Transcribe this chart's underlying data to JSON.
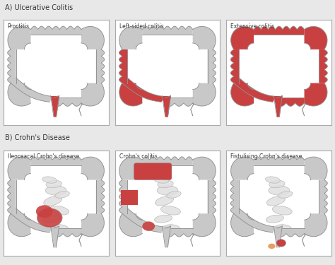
{
  "title_a": "A) Ulcerative Colitis",
  "title_b": "B) Crohn's Disease",
  "panels_row1": [
    "Proctitis",
    "Left-sided colitis",
    "Extensive colitis"
  ],
  "panels_row2": [
    "Ileoceacal Crohn's disease",
    "Crohn's colitis",
    "Fistulising Crohn's disease"
  ],
  "bg_color": "#e8e8e8",
  "panel_bg": "#ffffff",
  "colon_gray": "#c8c8c8",
  "colon_gray_dark": "#b0b0b0",
  "colon_gray_light": "#d8d8d8",
  "colon_outline": "#909090",
  "inflamed_color": "#c94040",
  "inflamed_light": "#d86060",
  "orange_color": "#e8a060",
  "text_color": "#333333",
  "border_color": "#aaaaaa",
  "small_int_gray": "#e0e0e0",
  "small_int_outline": "#b0b0b0"
}
